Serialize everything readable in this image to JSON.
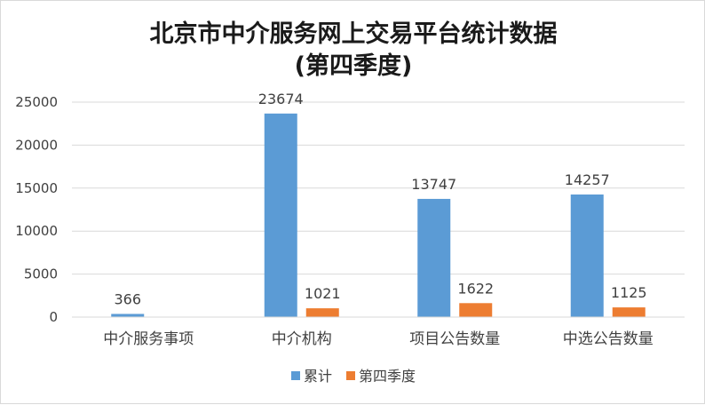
{
  "chart_data": {
    "type": "bar",
    "title": "北京市中介服务网上交易平台统计数据",
    "subtitle": "(第四季度)",
    "categories": [
      "中介服务事项",
      "中介机构",
      "项目公告数量",
      "中选公告数量"
    ],
    "series": [
      {
        "name": "累计",
        "values": [
          366,
          23674,
          13747,
          14257
        ],
        "color": "#5b9bd5"
      },
      {
        "name": "第四季度",
        "values": [
          null,
          1021,
          1622,
          1125
        ],
        "color": "#ed7d31"
      }
    ],
    "y_ticks": [
      0,
      5000,
      10000,
      15000,
      20000,
      25000
    ],
    "ylim": [
      0,
      25000
    ],
    "grid": true,
    "legend_position": "bottom"
  }
}
